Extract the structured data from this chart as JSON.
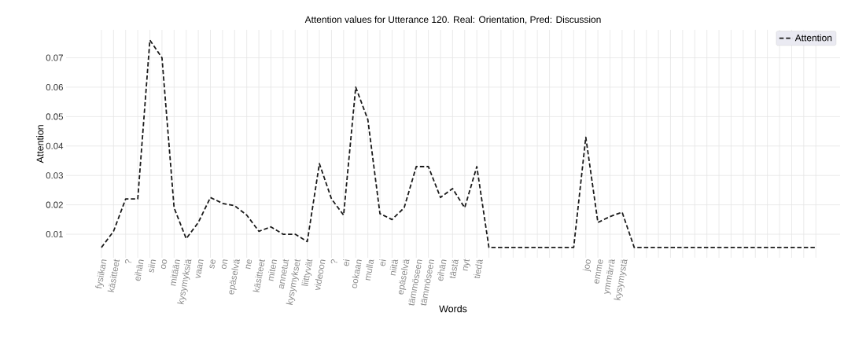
{
  "chart_data": {
    "type": "line",
    "title": "Attention values for Utterance 120. Real: Orientation, Pred: Discussion",
    "xlabel": "Words",
    "ylabel": "Attention",
    "categories": [
      "fysiikan",
      "käsitteet",
      "?",
      "eihän",
      "siin",
      "oo",
      "mitään",
      "kysymyksiä",
      "vaan",
      "se",
      "on",
      "epäselvä",
      "ne",
      "käsitteet",
      "miten",
      "annetut",
      "kysymykset",
      "liittyvät",
      "videoon",
      "?",
      "ei",
      "ookaan",
      "mulla",
      "ei",
      "niitä",
      "epäselvä",
      "tämmöseen",
      "tämmöseen",
      "eihän",
      "tästä",
      "nyt",
      "tiedä",
      null,
      null,
      null,
      null,
      null,
      null,
      null,
      null,
      "joo",
      "emme",
      "ymmärrä",
      "kysymystä",
      null,
      null,
      null,
      null,
      null,
      null,
      null,
      null,
      null,
      null,
      null,
      null,
      null,
      null,
      null,
      null
    ],
    "series": [
      {
        "name": "Attention",
        "color": "#1a1a1a",
        "values": [
          0.0055,
          0.011,
          0.022,
          0.022,
          0.076,
          0.07,
          0.019,
          0.0085,
          0.014,
          0.0225,
          0.0205,
          0.0197,
          0.0165,
          0.011,
          0.0125,
          0.01,
          0.01,
          0.0075,
          0.034,
          0.022,
          0.0165,
          0.06,
          0.049,
          0.017,
          0.015,
          0.019,
          0.033,
          0.033,
          0.0225,
          0.0255,
          0.019,
          0.033,
          0.0055,
          0.0055,
          0.0055,
          0.0055,
          0.0055,
          0.0055,
          0.0055,
          0.0055,
          0.043,
          0.014,
          0.016,
          0.0175,
          0.0055,
          0.0055,
          0.0055,
          0.0055,
          0.0055,
          0.0055,
          0.0055,
          0.0055,
          0.0055,
          0.0055,
          0.0055,
          0.0055,
          0.0055,
          0.0055,
          0.0055,
          0.0055
        ]
      }
    ],
    "ylim": [
      0.002,
      0.0795
    ],
    "yticks": [
      0.01,
      0.02,
      0.03,
      0.04,
      0.05,
      0.06,
      0.07
    ],
    "grid": true,
    "legend": "top right",
    "line_style": "dashed",
    "marker": "none"
  }
}
